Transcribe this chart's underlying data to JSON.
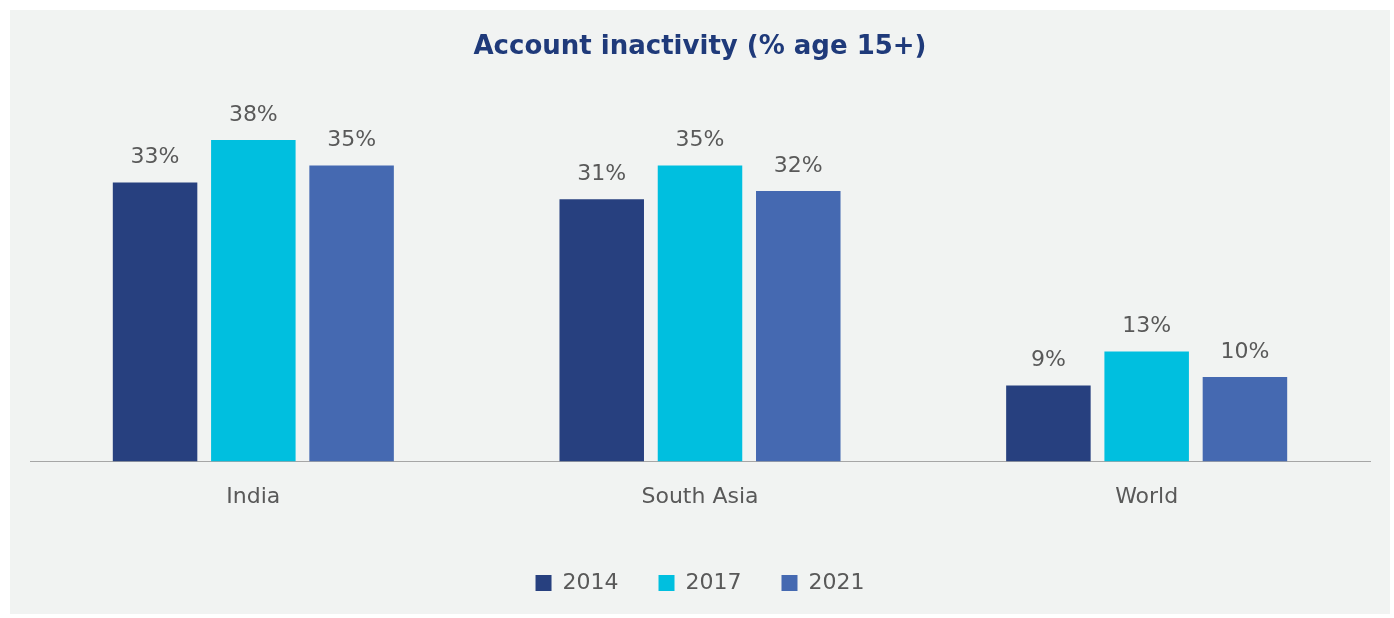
{
  "chart_data": {
    "type": "bar",
    "title": "Account inactivity (% age 15+)",
    "categories": [
      "India",
      "South Asia",
      "World"
    ],
    "series": [
      {
        "name": "2014",
        "color": "#27407f",
        "values": [
          33,
          31,
          9
        ],
        "value_labels": [
          "33%",
          "31%",
          "9%"
        ]
      },
      {
        "name": "2017",
        "color": "#00bfdf",
        "values": [
          38,
          35,
          13
        ],
        "value_labels": [
          "38%",
          "35%",
          "13%"
        ]
      },
      {
        "name": "2021",
        "color": "#4569b1",
        "values": [
          35,
          32,
          10
        ],
        "value_labels": [
          "35%",
          "32%",
          "10%"
        ]
      }
    ],
    "tick_labels": "x",
    "grid": false,
    "legend": "bottom"
  }
}
